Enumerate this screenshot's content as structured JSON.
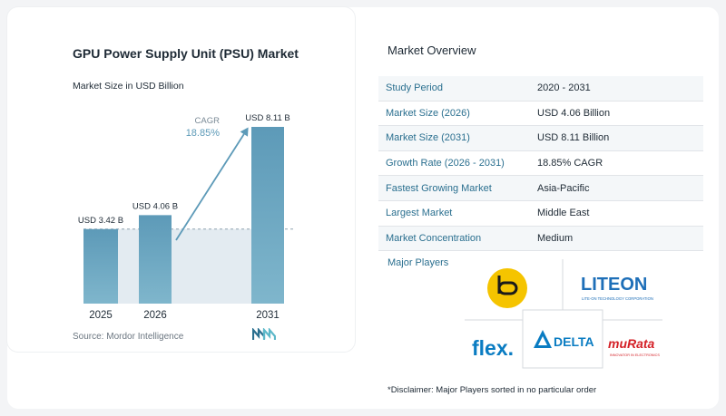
{
  "chart_data": {
    "type": "bar",
    "title": "GPU Power Supply Unit (PSU) Market",
    "subtitle": "Market Size in USD Billion",
    "categories": [
      "2025",
      "2026",
      "2031"
    ],
    "values": [
      3.42,
      4.06,
      8.11
    ],
    "data_labels": [
      "USD 3.42 B",
      "USD 4.06 B",
      "USD 8.11 B"
    ],
    "cagr_label": "CAGR",
    "cagr_value": "18.85%",
    "ylim": [
      0,
      8.11
    ],
    "colors": {
      "bar_top": "#5d9ab8",
      "bar_bottom": "#7fb6cc",
      "band": "#e3ebf1",
      "arrow": "#5d9ab8",
      "cagr_text": "#5d9ab8",
      "axis_text": "#1e2a35"
    }
  },
  "source": "Source: Mordor Intelligence",
  "overview": {
    "title": "Market Overview",
    "rows": [
      {
        "key": "Study Period",
        "value": "2020 - 2031"
      },
      {
        "key": "Market Size (2026)",
        "value": "USD 4.06 Billion"
      },
      {
        "key": "Market Size (2031)",
        "value": "USD 8.11 Billion"
      },
      {
        "key": "Growth Rate (2026 - 2031)",
        "value": "18.85% CAGR"
      },
      {
        "key": "Fastest Growing Market",
        "value": "Asia-Pacific"
      },
      {
        "key": "Largest Market",
        "value": "Middle East"
      },
      {
        "key": "Market Concentration",
        "value": "Medium"
      }
    ]
  },
  "players": {
    "label": "Major Players",
    "liteon_name": "LITEON",
    "liteon_sub": "LITE-ON TECHNOLOGY CORPORATION",
    "flex_name": "flex.",
    "delta_name": "DELTA",
    "murata_name": "muRata",
    "murata_sub": "INNOVATOR IN ELECTRONICS",
    "disclaimer": "*Disclaimer: Major Players sorted in no particular order"
  }
}
